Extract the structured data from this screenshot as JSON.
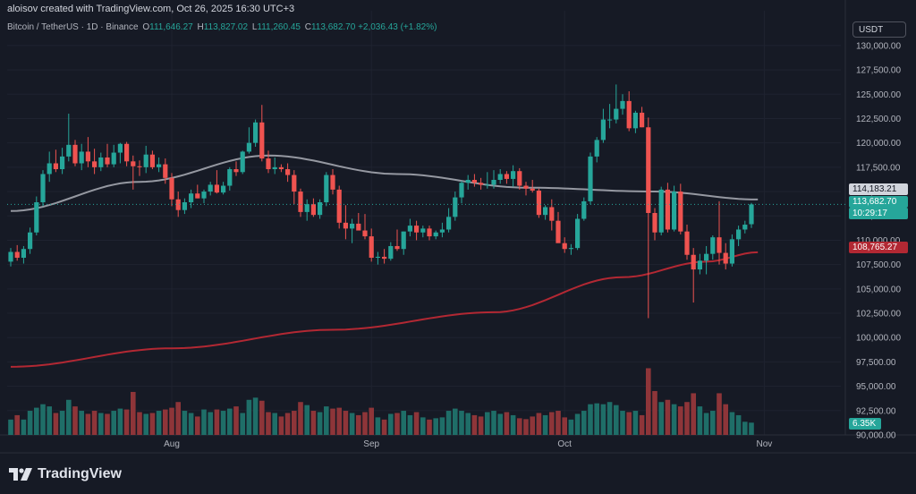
{
  "header": {
    "attribution": "aloisov created with TradingView.com, Oct 26, 2025 16:30 UTC+3"
  },
  "legend": {
    "symbol": "Bitcoin / TetherUS · 1D · Binance",
    "open_key": "O",
    "open": "111,646.27",
    "high_key": "H",
    "high": "113,827.02",
    "low_key": "L",
    "low": "111,260.45",
    "close_key": "C",
    "close": "113,682.70",
    "change": "+2,036.43 (+1.82%)"
  },
  "currency_button": "USDT",
  "brand": "TradingView",
  "colors": {
    "up": "#26a69a",
    "down": "#ef5350",
    "background": "#161a25",
    "ma_short": "#9598a1",
    "ma_long": "#b22833",
    "vol_up": "#1f6e68",
    "vol_down": "#8e3539"
  },
  "price_tags": {
    "ma_short": "114,183.21",
    "last_price": "113,682.70",
    "countdown": "10:29:17",
    "ma_long": "108,765.27",
    "volume": "6.35K"
  },
  "chart_data": {
    "type": "candlestick",
    "price_axis": {
      "range": [
        90000,
        131000
      ],
      "ticks": [
        "130,000.00",
        "127,500.00",
        "125,000.00",
        "122,500.00",
        "120,000.00",
        "117,500.00",
        "115,000.00",
        "112,500.00",
        "110,000.00",
        "107,500.00",
        "105,000.00",
        "102,500.00",
        "100,000.00",
        "97,500.00",
        "95,000.00",
        "92,500.00",
        "90,000.00"
      ],
      "tick_values": [
        130000,
        127500,
        125000,
        122500,
        120000,
        117500,
        115000,
        112500,
        110000,
        107500,
        105000,
        102500,
        100000,
        97500,
        95000,
        92500,
        90000
      ]
    },
    "time_axis": {
      "labels": [
        "Aug",
        "Sep",
        "Oct",
        "Nov"
      ],
      "label_day_index": [
        25,
        56,
        86,
        117
      ]
    },
    "candles": [
      {
        "o": 107800,
        "h": 109200,
        "l": 107300,
        "c": 108800
      },
      {
        "o": 108800,
        "h": 109500,
        "l": 107900,
        "c": 108200
      },
      {
        "o": 108200,
        "h": 109400,
        "l": 107600,
        "c": 109100
      },
      {
        "o": 109100,
        "h": 111300,
        "l": 108600,
        "c": 110800
      },
      {
        "o": 110800,
        "h": 114500,
        "l": 110500,
        "c": 113900
      },
      {
        "o": 113900,
        "h": 117200,
        "l": 113500,
        "c": 116800
      },
      {
        "o": 116800,
        "h": 119100,
        "l": 116000,
        "c": 117900
      },
      {
        "o": 117900,
        "h": 119300,
        "l": 117000,
        "c": 117300
      },
      {
        "o": 117300,
        "h": 119500,
        "l": 116800,
        "c": 118600
      },
      {
        "o": 118600,
        "h": 123000,
        "l": 118100,
        "c": 119800
      },
      {
        "o": 119800,
        "h": 120300,
        "l": 117600,
        "c": 117900
      },
      {
        "o": 117900,
        "h": 119900,
        "l": 117200,
        "c": 119100
      },
      {
        "o": 119100,
        "h": 120600,
        "l": 117500,
        "c": 118100
      },
      {
        "o": 118100,
        "h": 119400,
        "l": 116800,
        "c": 117500
      },
      {
        "o": 117500,
        "h": 119000,
        "l": 117100,
        "c": 118500
      },
      {
        "o": 118500,
        "h": 119900,
        "l": 117500,
        "c": 117800
      },
      {
        "o": 117800,
        "h": 119800,
        "l": 117500,
        "c": 119000
      },
      {
        "o": 119000,
        "h": 120000,
        "l": 117900,
        "c": 119900
      },
      {
        "o": 119900,
        "h": 120100,
        "l": 117600,
        "c": 118100
      },
      {
        "o": 118100,
        "h": 118700,
        "l": 115200,
        "c": 117600
      },
      {
        "o": 117600,
        "h": 118200,
        "l": 116600,
        "c": 117500
      },
      {
        "o": 117500,
        "h": 119700,
        "l": 116900,
        "c": 118800
      },
      {
        "o": 118800,
        "h": 119200,
        "l": 117300,
        "c": 117500
      },
      {
        "o": 117500,
        "h": 118500,
        "l": 117000,
        "c": 117800
      },
      {
        "o": 117800,
        "h": 118400,
        "l": 115800,
        "c": 116400
      },
      {
        "o": 116400,
        "h": 116900,
        "l": 113500,
        "c": 114200
      },
      {
        "o": 114200,
        "h": 115000,
        "l": 112400,
        "c": 113100
      },
      {
        "o": 113100,
        "h": 114300,
        "l": 112700,
        "c": 113900
      },
      {
        "o": 113900,
        "h": 115200,
        "l": 113300,
        "c": 114800
      },
      {
        "o": 114800,
        "h": 115700,
        "l": 114300,
        "c": 114300
      },
      {
        "o": 114300,
        "h": 115200,
        "l": 113800,
        "c": 115000
      },
      {
        "o": 115000,
        "h": 116000,
        "l": 114600,
        "c": 115700
      },
      {
        "o": 115700,
        "h": 117200,
        "l": 114800,
        "c": 114900
      },
      {
        "o": 114900,
        "h": 116000,
        "l": 114700,
        "c": 115600
      },
      {
        "o": 115600,
        "h": 117500,
        "l": 115100,
        "c": 117300
      },
      {
        "o": 117300,
        "h": 118100,
        "l": 116600,
        "c": 117000
      },
      {
        "o": 117000,
        "h": 119200,
        "l": 116800,
        "c": 119100
      },
      {
        "o": 119100,
        "h": 121600,
        "l": 118900,
        "c": 120000
      },
      {
        "o": 120000,
        "h": 122400,
        "l": 119600,
        "c": 122100
      },
      {
        "o": 122100,
        "h": 123900,
        "l": 118100,
        "c": 118400
      },
      {
        "o": 118400,
        "h": 119200,
        "l": 116900,
        "c": 117300
      },
      {
        "o": 117300,
        "h": 118500,
        "l": 116800,
        "c": 117500
      },
      {
        "o": 117500,
        "h": 117800,
        "l": 117000,
        "c": 117300
      },
      {
        "o": 117300,
        "h": 117900,
        "l": 116000,
        "c": 116700
      },
      {
        "o": 116700,
        "h": 117200,
        "l": 113700,
        "c": 115000
      },
      {
        "o": 115000,
        "h": 115300,
        "l": 112400,
        "c": 112900
      },
      {
        "o": 112900,
        "h": 114200,
        "l": 112000,
        "c": 113700
      },
      {
        "o": 113700,
        "h": 114300,
        "l": 112400,
        "c": 112600
      },
      {
        "o": 112600,
        "h": 114200,
        "l": 112200,
        "c": 113900
      },
      {
        "o": 113900,
        "h": 117000,
        "l": 113500,
        "c": 116700
      },
      {
        "o": 116700,
        "h": 117300,
        "l": 114700,
        "c": 115200
      },
      {
        "o": 115200,
        "h": 115600,
        "l": 111200,
        "c": 111800
      },
      {
        "o": 111800,
        "h": 113600,
        "l": 110100,
        "c": 111200
      },
      {
        "o": 111200,
        "h": 112200,
        "l": 109700,
        "c": 111700
      },
      {
        "o": 111700,
        "h": 112800,
        "l": 111200,
        "c": 111000
      },
      {
        "o": 111000,
        "h": 112700,
        "l": 110100,
        "c": 110400
      },
      {
        "o": 110400,
        "h": 111200,
        "l": 107800,
        "c": 108200
      },
      {
        "o": 108200,
        "h": 108800,
        "l": 107500,
        "c": 108300
      },
      {
        "o": 108300,
        "h": 109100,
        "l": 107600,
        "c": 108100
      },
      {
        "o": 108100,
        "h": 109800,
        "l": 107900,
        "c": 109400
      },
      {
        "o": 109400,
        "h": 111100,
        "l": 108900,
        "c": 109100
      },
      {
        "o": 109100,
        "h": 110900,
        "l": 108500,
        "c": 110900
      },
      {
        "o": 110900,
        "h": 112200,
        "l": 110400,
        "c": 111500
      },
      {
        "o": 111500,
        "h": 112000,
        "l": 110000,
        "c": 110800
      },
      {
        "o": 110800,
        "h": 111500,
        "l": 110300,
        "c": 111200
      },
      {
        "o": 111200,
        "h": 111500,
        "l": 110000,
        "c": 110400
      },
      {
        "o": 110400,
        "h": 111000,
        "l": 110100,
        "c": 110800
      },
      {
        "o": 110800,
        "h": 111800,
        "l": 110300,
        "c": 111100
      },
      {
        "o": 111100,
        "h": 113300,
        "l": 110800,
        "c": 112400
      },
      {
        "o": 112400,
        "h": 115000,
        "l": 112000,
        "c": 114400
      },
      {
        "o": 114400,
        "h": 116100,
        "l": 113800,
        "c": 115900
      },
      {
        "o": 115900,
        "h": 116700,
        "l": 115200,
        "c": 116200
      },
      {
        "o": 116200,
        "h": 116800,
        "l": 115500,
        "c": 115900
      },
      {
        "o": 115900,
        "h": 116400,
        "l": 115200,
        "c": 115700
      },
      {
        "o": 115700,
        "h": 117000,
        "l": 115300,
        "c": 115700
      },
      {
        "o": 115700,
        "h": 117200,
        "l": 115300,
        "c": 116200
      },
      {
        "o": 116200,
        "h": 117300,
        "l": 115800,
        "c": 116800
      },
      {
        "o": 116800,
        "h": 117100,
        "l": 115800,
        "c": 116300
      },
      {
        "o": 116300,
        "h": 117700,
        "l": 115500,
        "c": 117100
      },
      {
        "o": 117100,
        "h": 117400,
        "l": 115200,
        "c": 115600
      },
      {
        "o": 115600,
        "h": 116000,
        "l": 114600,
        "c": 115300
      },
      {
        "o": 115300,
        "h": 116200,
        "l": 114900,
        "c": 115100
      },
      {
        "o": 115100,
        "h": 115300,
        "l": 112300,
        "c": 112600
      },
      {
        "o": 112600,
        "h": 113600,
        "l": 112100,
        "c": 113400
      },
      {
        "o": 113400,
        "h": 114200,
        "l": 111000,
        "c": 112000
      },
      {
        "o": 112000,
        "h": 112900,
        "l": 109900,
        "c": 109700
      },
      {
        "o": 109700,
        "h": 110300,
        "l": 108700,
        "c": 109100
      },
      {
        "o": 109100,
        "h": 109600,
        "l": 108500,
        "c": 109200
      },
      {
        "o": 109200,
        "h": 112700,
        "l": 109000,
        "c": 112200
      },
      {
        "o": 112200,
        "h": 114400,
        "l": 112000,
        "c": 114000
      },
      {
        "o": 114000,
        "h": 119000,
        "l": 113700,
        "c": 118600
      },
      {
        "o": 118600,
        "h": 120600,
        "l": 118000,
        "c": 120300
      },
      {
        "o": 120300,
        "h": 123500,
        "l": 120000,
        "c": 122400
      },
      {
        "o": 122400,
        "h": 124000,
        "l": 121500,
        "c": 122400
      },
      {
        "o": 122400,
        "h": 126000,
        "l": 122000,
        "c": 123500
      },
      {
        "o": 123500,
        "h": 125000,
        "l": 122900,
        "c": 124300
      },
      {
        "o": 124300,
        "h": 125300,
        "l": 121200,
        "c": 121500
      },
      {
        "o": 121500,
        "h": 123300,
        "l": 121000,
        "c": 123100
      },
      {
        "o": 123100,
        "h": 123700,
        "l": 121600,
        "c": 121600
      },
      {
        "o": 121600,
        "h": 122600,
        "l": 102000,
        "c": 112800
      },
      {
        "o": 112800,
        "h": 113300,
        "l": 110000,
        "c": 110800
      },
      {
        "o": 110800,
        "h": 115500,
        "l": 110500,
        "c": 115200
      },
      {
        "o": 115200,
        "h": 115900,
        "l": 110800,
        "c": 111100
      },
      {
        "o": 111100,
        "h": 115600,
        "l": 110900,
        "c": 115000
      },
      {
        "o": 115000,
        "h": 115800,
        "l": 110600,
        "c": 110900
      },
      {
        "o": 110900,
        "h": 111600,
        "l": 108000,
        "c": 108500
      },
      {
        "o": 108500,
        "h": 109200,
        "l": 103600,
        "c": 107000
      },
      {
        "o": 107000,
        "h": 108600,
        "l": 106500,
        "c": 107900
      },
      {
        "o": 107900,
        "h": 109400,
        "l": 106500,
        "c": 108600
      },
      {
        "o": 108600,
        "h": 110500,
        "l": 108000,
        "c": 110300
      },
      {
        "o": 110300,
        "h": 114000,
        "l": 107500,
        "c": 108700
      },
      {
        "o": 108700,
        "h": 109700,
        "l": 107000,
        "c": 107600
      },
      {
        "o": 107600,
        "h": 110600,
        "l": 107300,
        "c": 110100
      },
      {
        "o": 110100,
        "h": 111500,
        "l": 109400,
        "c": 111100
      },
      {
        "o": 111100,
        "h": 112000,
        "l": 110700,
        "c": 111600
      },
      {
        "o": 111646,
        "h": 113827,
        "l": 111260,
        "c": 113683
      }
    ],
    "volume": [
      0.35,
      0.45,
      0.35,
      0.55,
      0.62,
      0.7,
      0.65,
      0.5,
      0.55,
      0.8,
      0.65,
      0.55,
      0.48,
      0.55,
      0.5,
      0.48,
      0.55,
      0.6,
      0.58,
      0.98,
      0.52,
      0.48,
      0.5,
      0.55,
      0.58,
      0.62,
      0.75,
      0.55,
      0.5,
      0.42,
      0.58,
      0.52,
      0.58,
      0.55,
      0.6,
      0.65,
      0.5,
      0.8,
      0.85,
      0.78,
      0.52,
      0.5,
      0.42,
      0.5,
      0.55,
      0.75,
      0.68,
      0.55,
      0.52,
      0.65,
      0.6,
      0.62,
      0.55,
      0.5,
      0.45,
      0.52,
      0.62,
      0.4,
      0.35,
      0.48,
      0.5,
      0.55,
      0.45,
      0.52,
      0.4,
      0.35,
      0.38,
      0.4,
      0.55,
      0.6,
      0.55,
      0.5,
      0.45,
      0.42,
      0.52,
      0.55,
      0.48,
      0.52,
      0.45,
      0.38,
      0.36,
      0.42,
      0.5,
      0.45,
      0.52,
      0.55,
      0.4,
      0.35,
      0.48,
      0.55,
      0.7,
      0.72,
      0.7,
      0.75,
      0.68,
      0.55,
      0.52,
      0.55,
      0.45,
      1.52,
      1.0,
      0.75,
      0.8,
      0.7,
      0.65,
      0.75,
      0.95,
      0.65,
      0.5,
      0.55,
      0.95,
      0.7,
      0.52,
      0.45,
      0.3,
      0.28
    ],
    "ma_short": {
      "name": "",
      "start": 113000,
      "points": [
        [
          0,
          113000
        ],
        [
          20,
          116000
        ],
        [
          40,
          118700
        ],
        [
          60,
          116800
        ],
        [
          80,
          115400
        ],
        [
          100,
          115000
        ],
        [
          116,
          114183
        ]
      ]
    },
    "ma_long": {
      "name": "",
      "points": [
        [
          0,
          97000
        ],
        [
          25,
          98900
        ],
        [
          50,
          100800
        ],
        [
          75,
          102600
        ],
        [
          95,
          106200
        ],
        [
          108,
          107800
        ],
        [
          116,
          108765
        ]
      ]
    }
  }
}
